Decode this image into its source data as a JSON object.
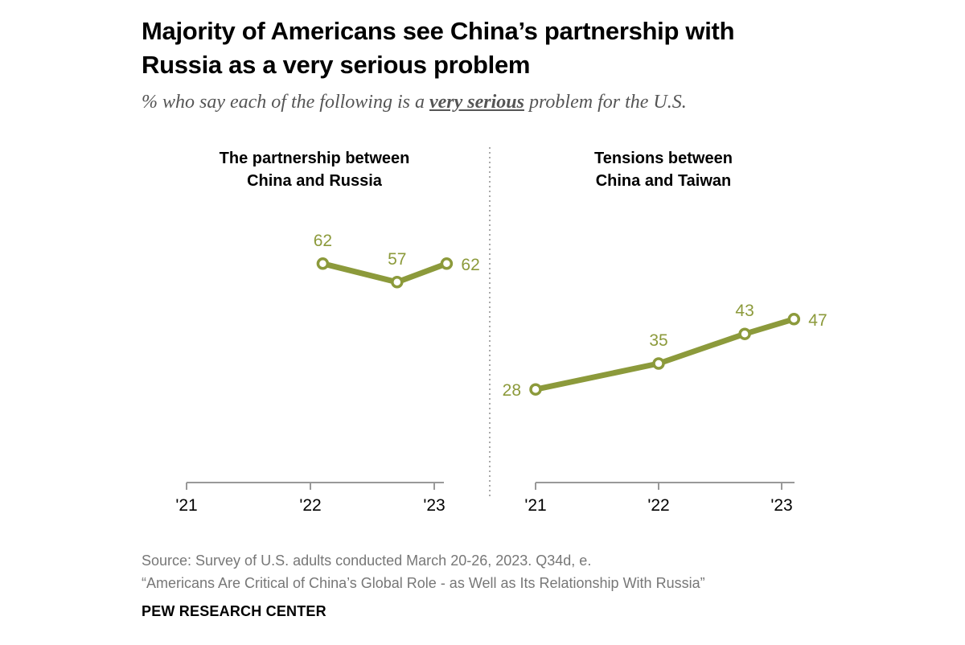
{
  "title_lines": [
    "Majority of Americans see China’s partnership with",
    "Russia as a very serious problem"
  ],
  "subtitle": {
    "before": "% who say each of the following is a ",
    "emphasis": "very serious",
    "after": " problem for the U.S."
  },
  "source_lines": [
    "Source: Survey of U.S. adults conducted March 20-26, 2023. Q34d, e.",
    "“Americans Are Critical of China’s Global Role - as Well as Its Relationship With Russia”"
  ],
  "brand": "PEW RESEARCH CENTER",
  "colors": {
    "series": "#8c9a3b",
    "axis": "#999999",
    "divider": "#aaaaaa"
  },
  "chart_data": [
    {
      "type": "line",
      "title_lines": [
        "The partnership between",
        "China and Russia"
      ],
      "x_ticks": [
        "'21",
        "'22",
        "'23"
      ],
      "x": [
        2022.1,
        2022.7,
        2023.1
      ],
      "values": [
        62,
        57,
        62
      ],
      "labels": [
        "62",
        "57",
        "62"
      ],
      "label_pos": [
        "above",
        "above",
        "right"
      ],
      "xlim": [
        2021,
        2023
      ],
      "ylim": [
        0,
        100
      ],
      "grid": false
    },
    {
      "type": "line",
      "title_lines": [
        "Tensions between",
        "China and Taiwan"
      ],
      "x_ticks": [
        "'21",
        "'22",
        "'23"
      ],
      "x": [
        2021,
        2022,
        2022.7,
        2023.1
      ],
      "values": [
        28,
        35,
        43,
        47
      ],
      "labels": [
        "28",
        "35",
        "43",
        "47"
      ],
      "label_pos": [
        "left",
        "above",
        "above",
        "right"
      ],
      "xlim": [
        2021,
        2023
      ],
      "ylim": [
        0,
        100
      ],
      "grid": false
    }
  ]
}
